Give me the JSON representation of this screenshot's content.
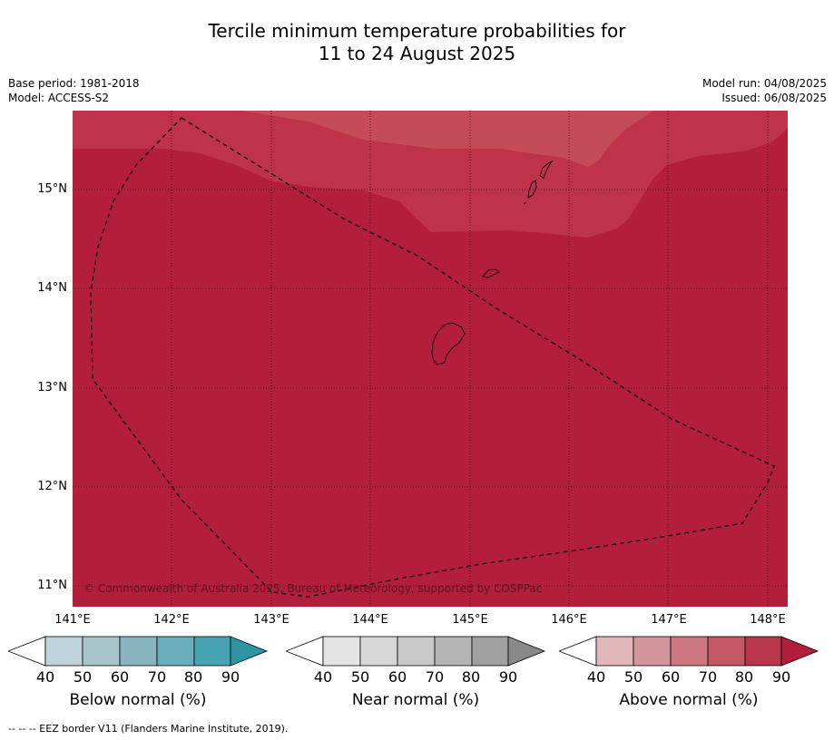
{
  "title_line1": "Tercile minimum temperature probabilities for",
  "title_line2": "11 to 24 August 2025",
  "base_period": "Base period: 1981-2018",
  "model": "Model: ACCESS-S2",
  "model_run": "Model run: 04/08/2025",
  "issued": "Issued: 06/08/2025",
  "latitudes": [
    "15°N",
    "14°N",
    "13°N",
    "12°N",
    "11°N"
  ],
  "longitudes": [
    "141°E",
    "142°E",
    "143°E",
    "144°E",
    "145°E",
    "146°E",
    "147°E",
    "148°E"
  ],
  "copyright": "© Commonwealth of Australia 2025, Bureau of Meteorology, supported by COSPPac",
  "colorbars": [
    {
      "label": "Below normal (%)",
      "ticks": [
        "40",
        "50",
        "60",
        "70",
        "80",
        "90"
      ],
      "colors": [
        "#bdd4da",
        "#a7c6cb",
        "#88b5bf",
        "#6aadbc",
        "#47a2b2",
        "#2d94a4"
      ]
    },
    {
      "label": "Near normal (%)",
      "ticks": [
        "40",
        "50",
        "60",
        "70",
        "80",
        "90"
      ],
      "colors": [
        "#e4e4e4",
        "#d7d7d7",
        "#c8c8c8",
        "#b4b4b4",
        "#a0a0a0",
        "#888888"
      ]
    },
    {
      "label": "Above normal (%)",
      "ticks": [
        "40",
        "50",
        "60",
        "70",
        "80",
        "90"
      ],
      "colors": [
        "#e2b7bc",
        "#d5959c",
        "#cd7780",
        "#c55862",
        "#b8354a",
        "#b01e3c"
      ]
    }
  ],
  "footer": "--  --  -- EEZ border V11 (Flanders Marine Institute, 2019).",
  "map_colors": {
    "band_80_90": "#b31e3b",
    "band_70_80": "#be3349",
    "band_60_70": "#c44b58"
  }
}
